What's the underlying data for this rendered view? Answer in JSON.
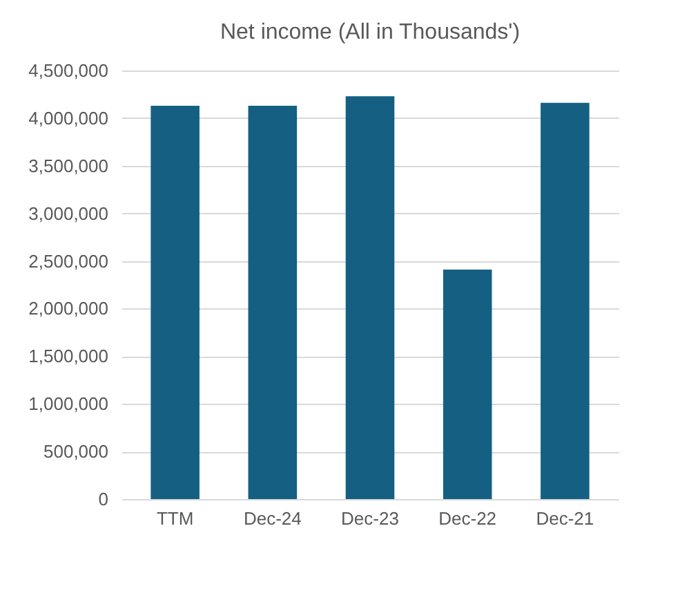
{
  "chart_data": {
    "type": "bar",
    "title": "Net income (All in Thousands')",
    "categories": [
      "TTM",
      "Dec-24",
      "Dec-23",
      "Dec-22",
      "Dec-21"
    ],
    "values": [
      4130000,
      4130000,
      4230000,
      2410000,
      4160000
    ],
    "color": "#156082",
    "ylim": [
      0,
      4500000
    ],
    "yticks": [
      0,
      {
        "value": 500000,
        "label": "500,000"
      },
      {
        "value": 1000000,
        "label": "1,000,000"
      },
      {
        "value": 1500000,
        "label": "1,500,000"
      },
      {
        "value": 2000000,
        "label": "2,000,000"
      },
      {
        "value": 2500000,
        "label": "2,500,000"
      },
      {
        "value": 3000000,
        "label": "3,000,000"
      },
      {
        "value": 3500000,
        "label": "3,500,000"
      },
      {
        "value": 4000000,
        "label": "4,000,000"
      },
      {
        "value": 4500000,
        "label": "4,500,000"
      }
    ],
    "grid": "y"
  }
}
